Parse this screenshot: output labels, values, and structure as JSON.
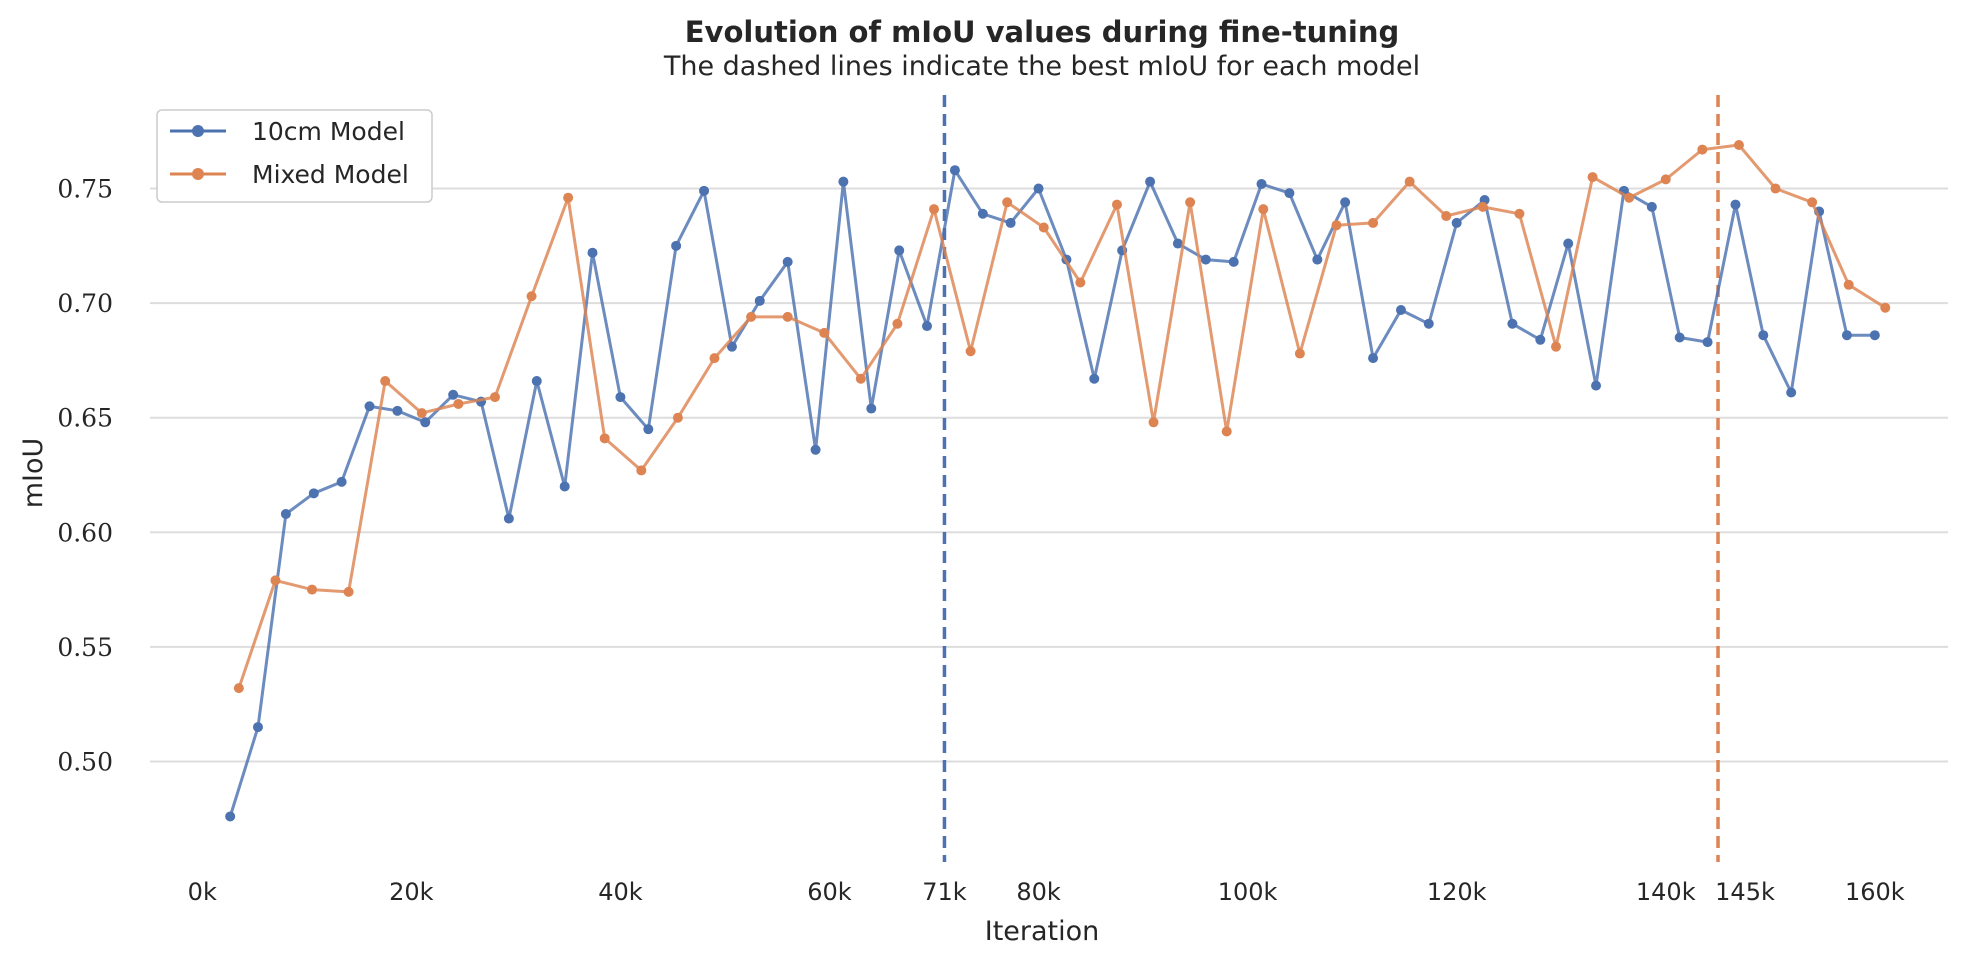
{
  "chart_data": {
    "type": "line",
    "title": "Evolution of mIoU values during fine-tuning",
    "subtitle": "The dashed lines indicate the best mIoU for each model",
    "xlabel": "Iteration",
    "ylabel": "mIoU",
    "xlim": [
      -5000,
      167000
    ],
    "ylim": [
      0.457,
      0.793
    ],
    "xticks": [
      {
        "value": 0,
        "label": "0k"
      },
      {
        "value": 20000,
        "label": "20k"
      },
      {
        "value": 40000,
        "label": "40k"
      },
      {
        "value": 60000,
        "label": "60k"
      },
      {
        "value": 80000,
        "label": "80k"
      },
      {
        "value": 100000,
        "label": "100k"
      },
      {
        "value": 120000,
        "label": "120k"
      },
      {
        "value": 140000,
        "label": "140k"
      },
      {
        "value": 160000,
        "label": "160k"
      }
    ],
    "yticks": [
      {
        "value": 0.5,
        "label": "0.50"
      },
      {
        "value": 0.55,
        "label": "0.55"
      },
      {
        "value": 0.6,
        "label": "0.60"
      },
      {
        "value": 0.65,
        "label": "0.65"
      },
      {
        "value": 0.7,
        "label": "0.70"
      },
      {
        "value": 0.75,
        "label": "0.75"
      }
    ],
    "grid": "horizontal",
    "legend_position": "top-left",
    "series": [
      {
        "name": "10cm Model",
        "color": "#4c72b0",
        "x": [
          2670,
          5330,
          8000,
          10670,
          13330,
          16000,
          18670,
          21330,
          24000,
          26670,
          29330,
          32000,
          34670,
          37330,
          40000,
          42670,
          45330,
          48000,
          50670,
          53330,
          56000,
          58670,
          61330,
          64000,
          66670,
          69330,
          72000,
          74670,
          77330,
          80000,
          82670,
          85330,
          88000,
          90670,
          93330,
          96000,
          98670,
          101330,
          104000,
          106670,
          109330,
          112000,
          114670,
          117330,
          120000,
          122670,
          125330,
          128000,
          130670,
          133330,
          136000,
          138670,
          141330,
          144000,
          146670,
          149330,
          152000,
          154670,
          157330,
          160000
        ],
        "y": [
          0.476,
          0.515,
          0.608,
          0.617,
          0.622,
          0.655,
          0.653,
          0.648,
          0.66,
          0.657,
          0.606,
          0.666,
          0.62,
          0.722,
          0.659,
          0.645,
          0.725,
          0.749,
          0.681,
          0.701,
          0.718,
          0.636,
          0.753,
          0.654,
          0.723,
          0.69,
          0.758,
          0.739,
          0.735,
          0.75,
          0.719,
          0.667,
          0.723,
          0.753,
          0.726,
          0.719,
          0.718,
          0.752,
          0.748,
          0.719,
          0.744,
          0.676,
          0.697,
          0.691,
          0.735,
          0.745,
          0.691,
          0.684,
          0.726,
          0.664,
          0.749,
          0.742,
          0.685,
          0.683,
          0.743,
          0.686,
          0.661,
          0.74,
          0.686,
          0.686
        ]
      },
      {
        "name": "Mixed Model",
        "color": "#dd8452",
        "x": [
          3500,
          7000,
          10500,
          14000,
          17500,
          21000,
          24500,
          28000,
          31500,
          35000,
          38500,
          42000,
          45500,
          49000,
          52500,
          56000,
          59500,
          63000,
          66500,
          70000,
          73500,
          77000,
          80500,
          84000,
          87500,
          91000,
          94500,
          98000,
          101500,
          105000,
          108500,
          112000,
          115500,
          119000,
          122500,
          126000,
          129500,
          133000,
          136500,
          140000,
          143500,
          147000,
          150500,
          154000,
          157500,
          161000
        ],
        "y": [
          0.532,
          0.579,
          0.575,
          0.574,
          0.666,
          0.652,
          0.656,
          0.659,
          0.703,
          0.746,
          0.641,
          0.627,
          0.65,
          0.676,
          0.694,
          0.694,
          0.687,
          0.667,
          0.691,
          0.741,
          0.679,
          0.744,
          0.733,
          0.709,
          0.743,
          0.648,
          0.744,
          0.644,
          0.741,
          0.678,
          0.734,
          0.735,
          0.753,
          0.738,
          0.742,
          0.739,
          0.681,
          0.755,
          0.746,
          0.754,
          0.767,
          0.769,
          0.75,
          0.744,
          0.708,
          0.698
        ]
      }
    ],
    "best_markers": [
      {
        "model": "10cm Model",
        "x": 71000,
        "label": "71k",
        "color": "#4c72b0"
      },
      {
        "model": "Mixed Model",
        "x": 145000,
        "label": "145k",
        "color": "#dd8452"
      }
    ]
  }
}
